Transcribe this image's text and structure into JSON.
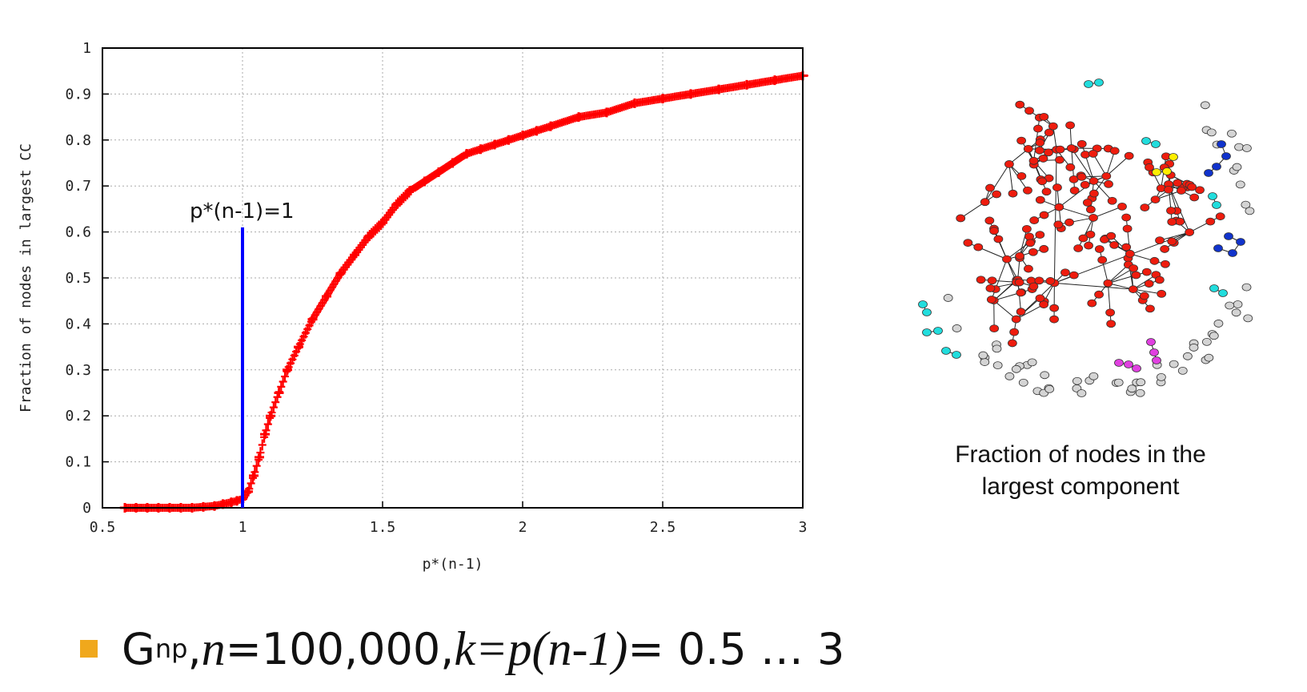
{
  "colors": {
    "series": "#ff0000",
    "marker_line": "#0000ff",
    "grid": "#aaaaaa",
    "axes": "#000000",
    "giant_component": "#ee1c0e",
    "isolated": "#d4d4d4",
    "cyan": "#22dddd",
    "blue": "#1133cc",
    "yellow": "#ffee00",
    "magenta": "#e040e0",
    "bullet": "#f0a81c"
  },
  "chart_data": {
    "type": "scatter",
    "xlabel": "p*(n-1)",
    "ylabel": "Fraction of nodes in largest CC",
    "xlim": [
      0.5,
      3
    ],
    "ylim": [
      0,
      1
    ],
    "x_ticks": [
      "0.5",
      "1",
      "1.5",
      "2",
      "2.5",
      "3"
    ],
    "y_ticks": [
      "0",
      "0.1",
      "0.2",
      "0.3",
      "0.4",
      "0.5",
      "0.6",
      "0.7",
      "0.8",
      "0.9",
      "1"
    ],
    "grid": true,
    "series": [
      {
        "marker": "+",
        "x": [
          0.58,
          0.62,
          0.66,
          0.7,
          0.74,
          0.78,
          0.82,
          0.86,
          0.9,
          0.93,
          0.96,
          0.98,
          1.0,
          1.02,
          1.04,
          1.06,
          1.08,
          1.1,
          1.13,
          1.16,
          1.2,
          1.25,
          1.3,
          1.35,
          1.4,
          1.45,
          1.5,
          1.55,
          1.6,
          1.65,
          1.7,
          1.75,
          1.8,
          1.85,
          1.9,
          1.95,
          2.0,
          2.05,
          2.1,
          2.2,
          2.3,
          2.4,
          2.5,
          2.6,
          2.7,
          2.8,
          2.9,
          3.0
        ],
        "y": [
          0.0,
          0.0,
          0.0,
          0.0,
          0.0,
          0.0,
          0.0,
          0.002,
          0.004,
          0.008,
          0.012,
          0.015,
          0.02,
          0.035,
          0.07,
          0.11,
          0.16,
          0.2,
          0.25,
          0.3,
          0.35,
          0.41,
          0.46,
          0.51,
          0.55,
          0.59,
          0.62,
          0.66,
          0.69,
          0.71,
          0.73,
          0.75,
          0.77,
          0.78,
          0.79,
          0.8,
          0.81,
          0.82,
          0.83,
          0.85,
          0.86,
          0.88,
          0.89,
          0.9,
          0.91,
          0.92,
          0.93,
          0.94
        ]
      }
    ],
    "annotation": {
      "label": "p*(n-1)=1",
      "x": 1,
      "y_top": 0.61
    }
  },
  "network": {
    "caption": "Fraction of nodes in the largest component"
  },
  "bullet": {
    "g": "G",
    "g_sub": "np",
    "sep": ", ",
    "n_var": "n",
    "n_rest": "=100,000, ",
    "k_expr": "k=p(n-1)",
    "range": " = 0.5 … 3"
  }
}
